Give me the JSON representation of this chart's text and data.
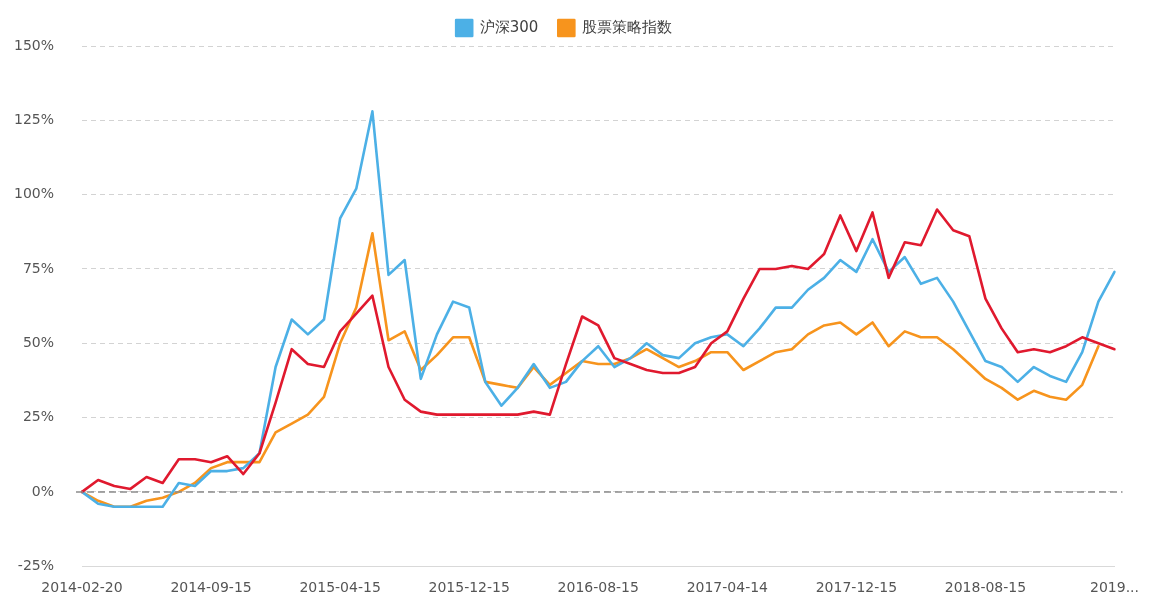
{
  "chart_data": {
    "type": "line",
    "categories": [
      "2014-02-20",
      null,
      null,
      null,
      null,
      null,
      null,
      null,
      "2014-09-15",
      null,
      null,
      null,
      null,
      null,
      null,
      null,
      "2015-04-15",
      null,
      null,
      null,
      null,
      null,
      null,
      null,
      "2015-12-15",
      null,
      null,
      null,
      null,
      null,
      null,
      null,
      "2016-08-15",
      null,
      null,
      null,
      null,
      null,
      null,
      null,
      "2017-04-14",
      null,
      null,
      null,
      null,
      null,
      null,
      null,
      "2017-12-15",
      null,
      null,
      null,
      null,
      null,
      null,
      null,
      "2018-08-15",
      null,
      null,
      null,
      null,
      null,
      null,
      null,
      "2019..."
    ],
    "series": [
      {
        "color": "#e0192e",
        "values": [
          0,
          4,
          2,
          1,
          5,
          3,
          11,
          11,
          10,
          12,
          6,
          13,
          30,
          48,
          43,
          42,
          54,
          60,
          66,
          42,
          31,
          27,
          26,
          26,
          26,
          26,
          26,
          26,
          27,
          26,
          43,
          59,
          56,
          45,
          43,
          41,
          40,
          40,
          42,
          50,
          54,
          65,
          75,
          75,
          76,
          75,
          80,
          93,
          81,
          94,
          72,
          84,
          83,
          95,
          88,
          86,
          65,
          55,
          47,
          48,
          47,
          49,
          52,
          50,
          48
        ]
      },
      {
        "name": "沪深300",
        "color": "#4cb0e6",
        "values": [
          0,
          -4,
          -5,
          -5,
          -5,
          -5,
          3,
          2,
          7,
          7,
          8,
          13,
          42,
          58,
          53,
          58,
          92,
          102,
          128,
          73,
          78,
          38,
          53,
          64,
          62,
          37,
          29,
          35,
          43,
          35,
          37,
          44,
          49,
          42,
          45,
          50,
          46,
          45,
          50,
          52,
          53,
          49,
          55,
          62,
          62,
          68,
          72,
          78,
          74,
          85,
          74,
          79,
          70,
          72,
          64,
          54,
          44,
          42,
          37,
          42,
          39,
          37,
          47,
          64,
          74
        ]
      },
      {
        "name": "股票策略指数",
        "color": "#f7941d",
        "values": [
          0,
          -3,
          -5,
          -5,
          -3,
          -2,
          0,
          3,
          8,
          10,
          10,
          10,
          20,
          23,
          26,
          32,
          50,
          62,
          87,
          51,
          54,
          41,
          46,
          52,
          52,
          37,
          36,
          35,
          42,
          36,
          40,
          44,
          43,
          43,
          45,
          48,
          45,
          42,
          44,
          47,
          47,
          41,
          44,
          47,
          48,
          53,
          56,
          57,
          53,
          57,
          49,
          54,
          52,
          52,
          48,
          43,
          38,
          35,
          31,
          34,
          32,
          31,
          36,
          49,
          null
        ]
      }
    ],
    "ylim": [
      -25,
      150
    ],
    "yticks": [
      {
        "value": -25,
        "label": "-25%"
      },
      {
        "value": 0,
        "label": "0%"
      },
      {
        "value": 25,
        "label": "25%"
      },
      {
        "value": 50,
        "label": "50%"
      },
      {
        "value": 75,
        "label": "75%"
      },
      {
        "value": 100,
        "label": "100%"
      },
      {
        "value": 125,
        "label": "125%"
      },
      {
        "value": 150,
        "label": "150%"
      }
    ],
    "grid": "y",
    "legend": "top",
    "marker": "none",
    "line_style": "solid",
    "ref_lines": [
      {
        "axis": "y",
        "value": 0,
        "color": "#8c8c8c",
        "line_style": "dashed"
      }
    ]
  }
}
